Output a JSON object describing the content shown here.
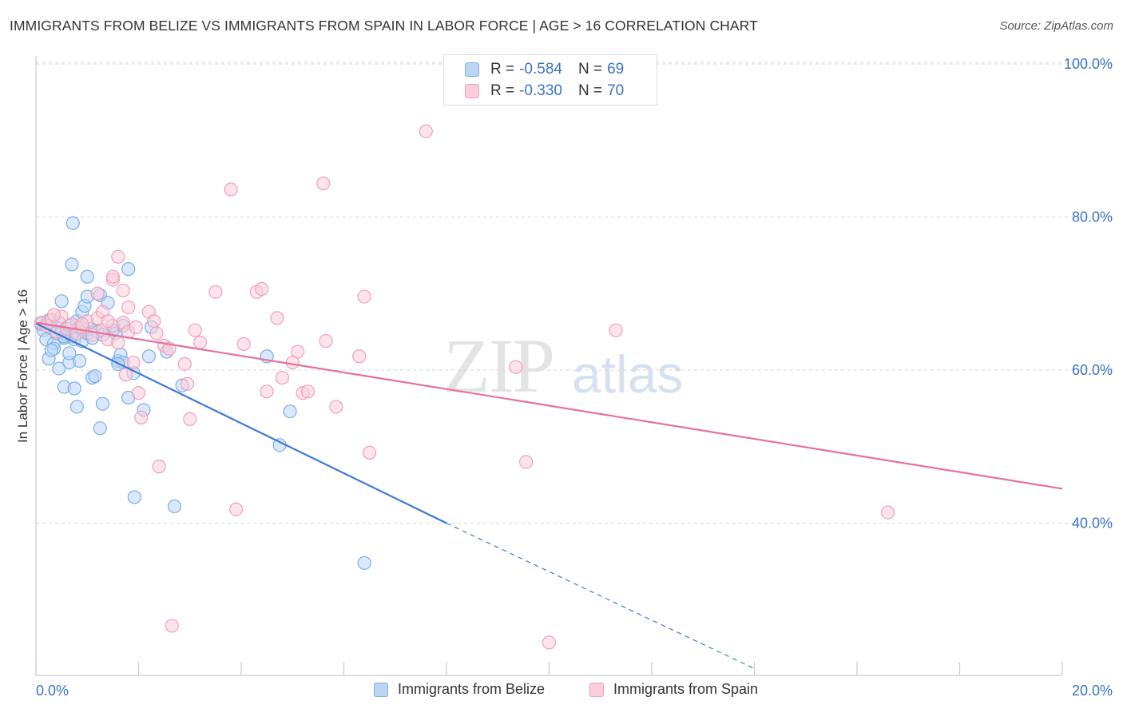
{
  "title": "IMMIGRANTS FROM BELIZE VS IMMIGRANTS FROM SPAIN IN LABOR FORCE | AGE > 16 CORRELATION CHART",
  "source": "Source: ZipAtlas.com",
  "watermark": {
    "zip": "ZIP",
    "atlas": "atlas"
  },
  "stats": [
    {
      "r_label": "R = ",
      "r_value": "-0.584",
      "n_label": "N = ",
      "n_value": "69",
      "color": "#7aaee8",
      "fill": "#bcd5f5"
    },
    {
      "r_label": "R = ",
      "r_value": "-0.330",
      "n_label": "N = ",
      "n_value": "70",
      "color": "#f0a0b8",
      "fill": "#f9cdd9"
    }
  ],
  "legend": [
    {
      "label": "Immigrants from Belize",
      "color": "#7aaee8",
      "fill": "#bcd5f5"
    },
    {
      "label": "Immigrants from Spain",
      "color": "#f0a0b8",
      "fill": "#f9cdd9"
    }
  ],
  "chart_data": {
    "type": "scatter",
    "title": "IMMIGRANTS FROM BELIZE VS IMMIGRANTS FROM SPAIN IN LABOR FORCE | AGE > 16 CORRELATION CHART",
    "xlabel": "",
    "ylabel": "In Labor Force | Age > 16",
    "xlim": [
      0,
      20
    ],
    "ylim": [
      21,
      102
    ],
    "x_ticks": [
      0,
      20
    ],
    "x_tick_labels": [
      "0.0%",
      "20.0%"
    ],
    "y_ticks": [
      40,
      60,
      80,
      100
    ],
    "y_tick_labels": [
      "40.0%",
      "60.0%",
      "80.0%",
      "100.0%"
    ],
    "grid": true,
    "legend_position": "bottom",
    "series": [
      {
        "name": "Immigrants from Belize",
        "color": "#3a78d8",
        "fill": "#bcd5f5",
        "stroke": "#7aaee8",
        "trend": {
          "x0": 0.0,
          "y0": 66.1,
          "x1": 8.0,
          "y1": 40.0,
          "dash_to_x": 14.0,
          "dash_to_y": 21.0
        },
        "points": [
          [
            0.1,
            66.0
          ],
          [
            0.15,
            65.2
          ],
          [
            0.2,
            64.0
          ],
          [
            0.25,
            66.5
          ],
          [
            0.3,
            65.5
          ],
          [
            0.35,
            63.5
          ],
          [
            0.4,
            64.8
          ],
          [
            0.45,
            66.2
          ],
          [
            0.5,
            65.0
          ],
          [
            0.55,
            64.2
          ],
          [
            0.6,
            64.6
          ],
          [
            0.65,
            65.8
          ],
          [
            0.7,
            64.4
          ],
          [
            0.75,
            64.0
          ],
          [
            0.8,
            66.4
          ],
          [
            0.85,
            65.6
          ],
          [
            0.9,
            63.8
          ],
          [
            0.95,
            65.2
          ],
          [
            1.0,
            64.8
          ],
          [
            1.05,
            65.4
          ],
          [
            0.25,
            61.5
          ],
          [
            0.35,
            62.8
          ],
          [
            0.45,
            60.2
          ],
          [
            0.5,
            69.0
          ],
          [
            0.55,
            57.8
          ],
          [
            0.65,
            61.0
          ],
          [
            0.75,
            57.6
          ],
          [
            0.8,
            55.2
          ],
          [
            0.85,
            61.2
          ],
          [
            0.9,
            67.6
          ],
          [
            0.95,
            68.4
          ],
          [
            1.0,
            72.2
          ],
          [
            0.7,
            73.8
          ],
          [
            0.72,
            79.2
          ],
          [
            1.1,
            59.0
          ],
          [
            1.15,
            59.2
          ],
          [
            1.2,
            65.0
          ],
          [
            1.25,
            69.8
          ],
          [
            1.3,
            55.6
          ],
          [
            1.25,
            52.4
          ],
          [
            1.4,
            68.8
          ],
          [
            1.5,
            65.2
          ],
          [
            1.55,
            64.8
          ],
          [
            1.6,
            61.2
          ],
          [
            1.65,
            62.0
          ],
          [
            1.7,
            61.0
          ],
          [
            1.8,
            56.4
          ],
          [
            1.8,
            73.2
          ],
          [
            1.9,
            59.6
          ],
          [
            1.92,
            43.4
          ],
          [
            2.1,
            54.8
          ],
          [
            2.2,
            61.8
          ],
          [
            2.25,
            65.6
          ],
          [
            2.55,
            62.4
          ],
          [
            2.7,
            42.2
          ],
          [
            2.85,
            58.0
          ],
          [
            4.5,
            61.8
          ],
          [
            4.75,
            50.2
          ],
          [
            4.95,
            54.6
          ],
          [
            6.4,
            34.8
          ],
          [
            1.0,
            69.6
          ],
          [
            1.6,
            60.8
          ],
          [
            1.7,
            65.8
          ],
          [
            0.3,
            62.6
          ],
          [
            0.65,
            62.2
          ],
          [
            1.1,
            64.2
          ],
          [
            0.55,
            64.4
          ],
          [
            0.9,
            65.6
          ],
          [
            1.3,
            64.6
          ]
        ]
      },
      {
        "name": "Immigrants from Spain",
        "color": "#e8709a",
        "fill": "#f9cdd9",
        "stroke": "#f0a0b8",
        "trend": {
          "x0": 0.0,
          "y0": 66.2,
          "x1": 20.0,
          "y1": 44.5
        },
        "points": [
          [
            0.1,
            66.2
          ],
          [
            0.2,
            65.8
          ],
          [
            0.3,
            66.6
          ],
          [
            0.4,
            65.0
          ],
          [
            0.5,
            67.0
          ],
          [
            0.6,
            65.4
          ],
          [
            0.7,
            66.0
          ],
          [
            0.8,
            64.8
          ],
          [
            0.9,
            65.6
          ],
          [
            1.0,
            66.4
          ],
          [
            1.1,
            64.6
          ],
          [
            1.2,
            66.8
          ],
          [
            1.3,
            65.2
          ],
          [
            1.4,
            64.0
          ],
          [
            1.5,
            65.8
          ],
          [
            1.6,
            63.6
          ],
          [
            1.7,
            66.2
          ],
          [
            1.8,
            65.0
          ],
          [
            0.35,
            67.2
          ],
          [
            0.9,
            66.0
          ],
          [
            1.2,
            70.0
          ],
          [
            1.3,
            67.6
          ],
          [
            1.5,
            71.8
          ],
          [
            1.5,
            72.2
          ],
          [
            1.6,
            74.8
          ],
          [
            1.7,
            70.4
          ],
          [
            1.75,
            59.4
          ],
          [
            1.8,
            68.2
          ],
          [
            1.9,
            61.0
          ],
          [
            1.95,
            65.6
          ],
          [
            2.0,
            57.0
          ],
          [
            2.05,
            53.8
          ],
          [
            2.2,
            67.6
          ],
          [
            2.3,
            66.4
          ],
          [
            2.35,
            64.8
          ],
          [
            2.4,
            47.4
          ],
          [
            2.5,
            63.2
          ],
          [
            2.6,
            62.8
          ],
          [
            2.65,
            26.6
          ],
          [
            2.9,
            60.8
          ],
          [
            2.95,
            58.2
          ],
          [
            3.0,
            53.6
          ],
          [
            3.1,
            65.2
          ],
          [
            3.5,
            70.2
          ],
          [
            3.8,
            83.6
          ],
          [
            3.9,
            41.8
          ],
          [
            4.05,
            63.4
          ],
          [
            4.3,
            70.2
          ],
          [
            4.4,
            70.6
          ],
          [
            4.5,
            57.2
          ],
          [
            4.7,
            66.8
          ],
          [
            4.8,
            59.0
          ],
          [
            5.1,
            62.4
          ],
          [
            5.2,
            57.0
          ],
          [
            5.3,
            57.2
          ],
          [
            5.6,
            84.4
          ],
          [
            5.65,
            63.8
          ],
          [
            5.85,
            55.2
          ],
          [
            6.3,
            61.8
          ],
          [
            6.4,
            69.6
          ],
          [
            6.5,
            49.2
          ],
          [
            7.6,
            91.2
          ],
          [
            9.35,
            60.4
          ],
          [
            9.55,
            48.0
          ],
          [
            10.0,
            24.4
          ],
          [
            11.3,
            65.2
          ],
          [
            16.6,
            41.4
          ],
          [
            5.0,
            61.0
          ],
          [
            3.2,
            63.6
          ],
          [
            1.4,
            66.4
          ]
        ]
      }
    ]
  }
}
